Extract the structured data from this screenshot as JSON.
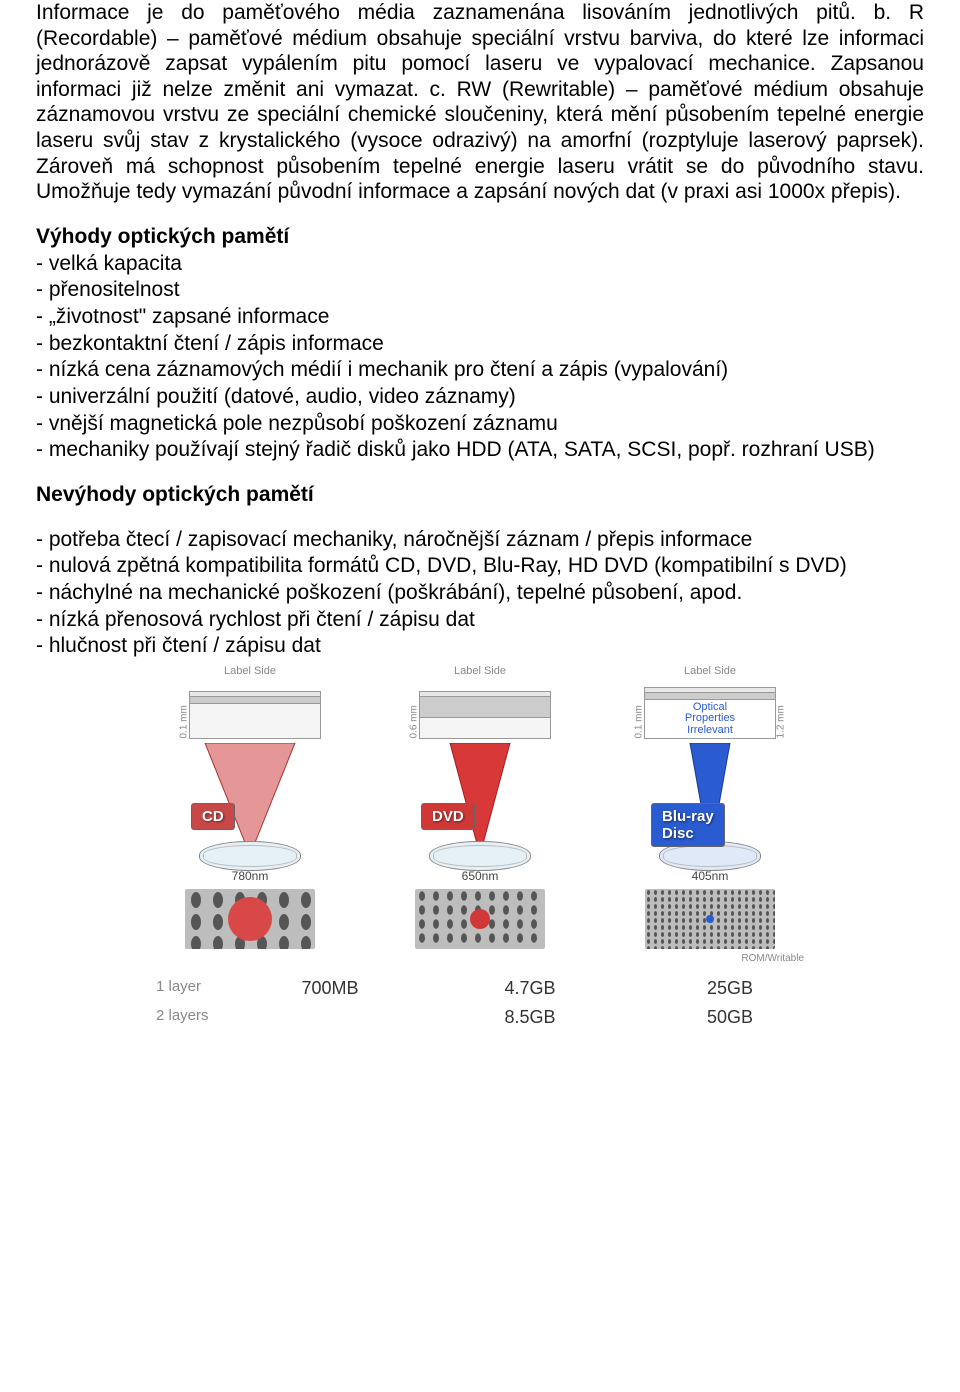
{
  "paragraph1": "Informace je do paměťového média zaznamenána lisováním jednotlivých pitů. b. R (Recordable) – paměťové médium obsahuje speciální vrstvu barviva, do které lze informaci jednorázově zapsat vypálením pitu pomocí laseru ve vypalovací mechanice. Zapsanou informaci již nelze změnit ani vymazat. c. RW (Rewritable) – paměťové médium obsahuje záznamovou vrstvu ze speciální chemické sloučeniny, která mění působením tepelné energie laseru svůj stav z krystalického (vysoce odrazivý) na amorfní (rozptyluje laserový paprsek). Zároveň má schopnost působením tepelné energie laseru vrátit se do původního stavu. Umožňuje tedy vymazání původní informace a zapsání nových dat (v praxi asi 1000x přepis).",
  "advantages": {
    "heading": "Výhody optických pamětí",
    "items": [
      "- velká kapacita",
      "- přenositelnost",
      "- „životnost\" zapsané informace",
      "- bezkontaktní čtení / zápis informace",
      "- nízká cena záznamových médií i mechanik pro čtení a zápis (vypalování)",
      "- univerzální použití (datové, audio, video záznamy)",
      "- vnější magnetická pole nezpůsobí poškození záznamu",
      "- mechaniky používají stejný řadič disků jako HDD (ATA, SATA, SCSI, popř. rozhraní USB)"
    ]
  },
  "disadvantages": {
    "heading": "Nevýhody optických pamětí",
    "items": [
      "- potřeba čtecí / zapisovací mechaniky, náročnější záznam / přepis informace",
      "- nulová zpětná kompatibilita formátů CD, DVD, Blu-Ray, HD DVD (kompatibilní s DVD)",
      "- náchylné na mechanické poškození (poškrábání), tepelné působení, apod.",
      "- nízká přenosová rychlost při čtení / zápisu dat",
      "- hlučnost při čtení / zápisu dat"
    ]
  },
  "diagram": {
    "label_side": "Label Side",
    "rom_writable": "ROM/Writable",
    "disc": [
      {
        "name": "CD",
        "thickness": "0.1 mm",
        "badge_bg": "#c84848",
        "cone_fill": "#e59797",
        "cone_stroke": "#a83030",
        "layers_h": [
          4,
          6,
          34
        ],
        "lens_fill": "#e6f0f7",
        "wavelength": "780nm",
        "box_text": "",
        "spot_color": "#d84848",
        "spot_r": 22,
        "badge_text": "CD"
      },
      {
        "name": "DVD",
        "thickness": "0.6 mm",
        "badge_bg": "#d03838",
        "cone_fill": "#d83838",
        "cone_stroke": "#a02020",
        "layers_h": [
          4,
          20,
          20
        ],
        "lens_fill": "#e6f0f7",
        "wavelength": "650nm",
        "box_text": "",
        "spot_color": "#d03838",
        "spot_r": 10,
        "badge_text": "DVD"
      },
      {
        "name": "Blu-ray Disc",
        "thickness": "0.1 mm",
        "thickness2": "1.2 mm",
        "badge_bg": "#2a5bd0",
        "cone_fill": "#2a5bd0",
        "cone_stroke": "#1a3a90",
        "layers_h": [
          4,
          6
        ],
        "box_text": "Optical\nProperties\nIrrelevant",
        "lens_fill": "#dfe9f7",
        "wavelength": "405nm",
        "spot_color": "#2a5bd0",
        "spot_r": 4,
        "badge_text": "Blu-ray\nDisc"
      }
    ],
    "capacity": {
      "row_labels": [
        "1 layer",
        "2 layers"
      ],
      "cols": [
        [
          "700MB",
          ""
        ],
        [
          "4.7GB",
          "8.5GB"
        ],
        [
          "25GB",
          "50GB"
        ]
      ]
    }
  }
}
